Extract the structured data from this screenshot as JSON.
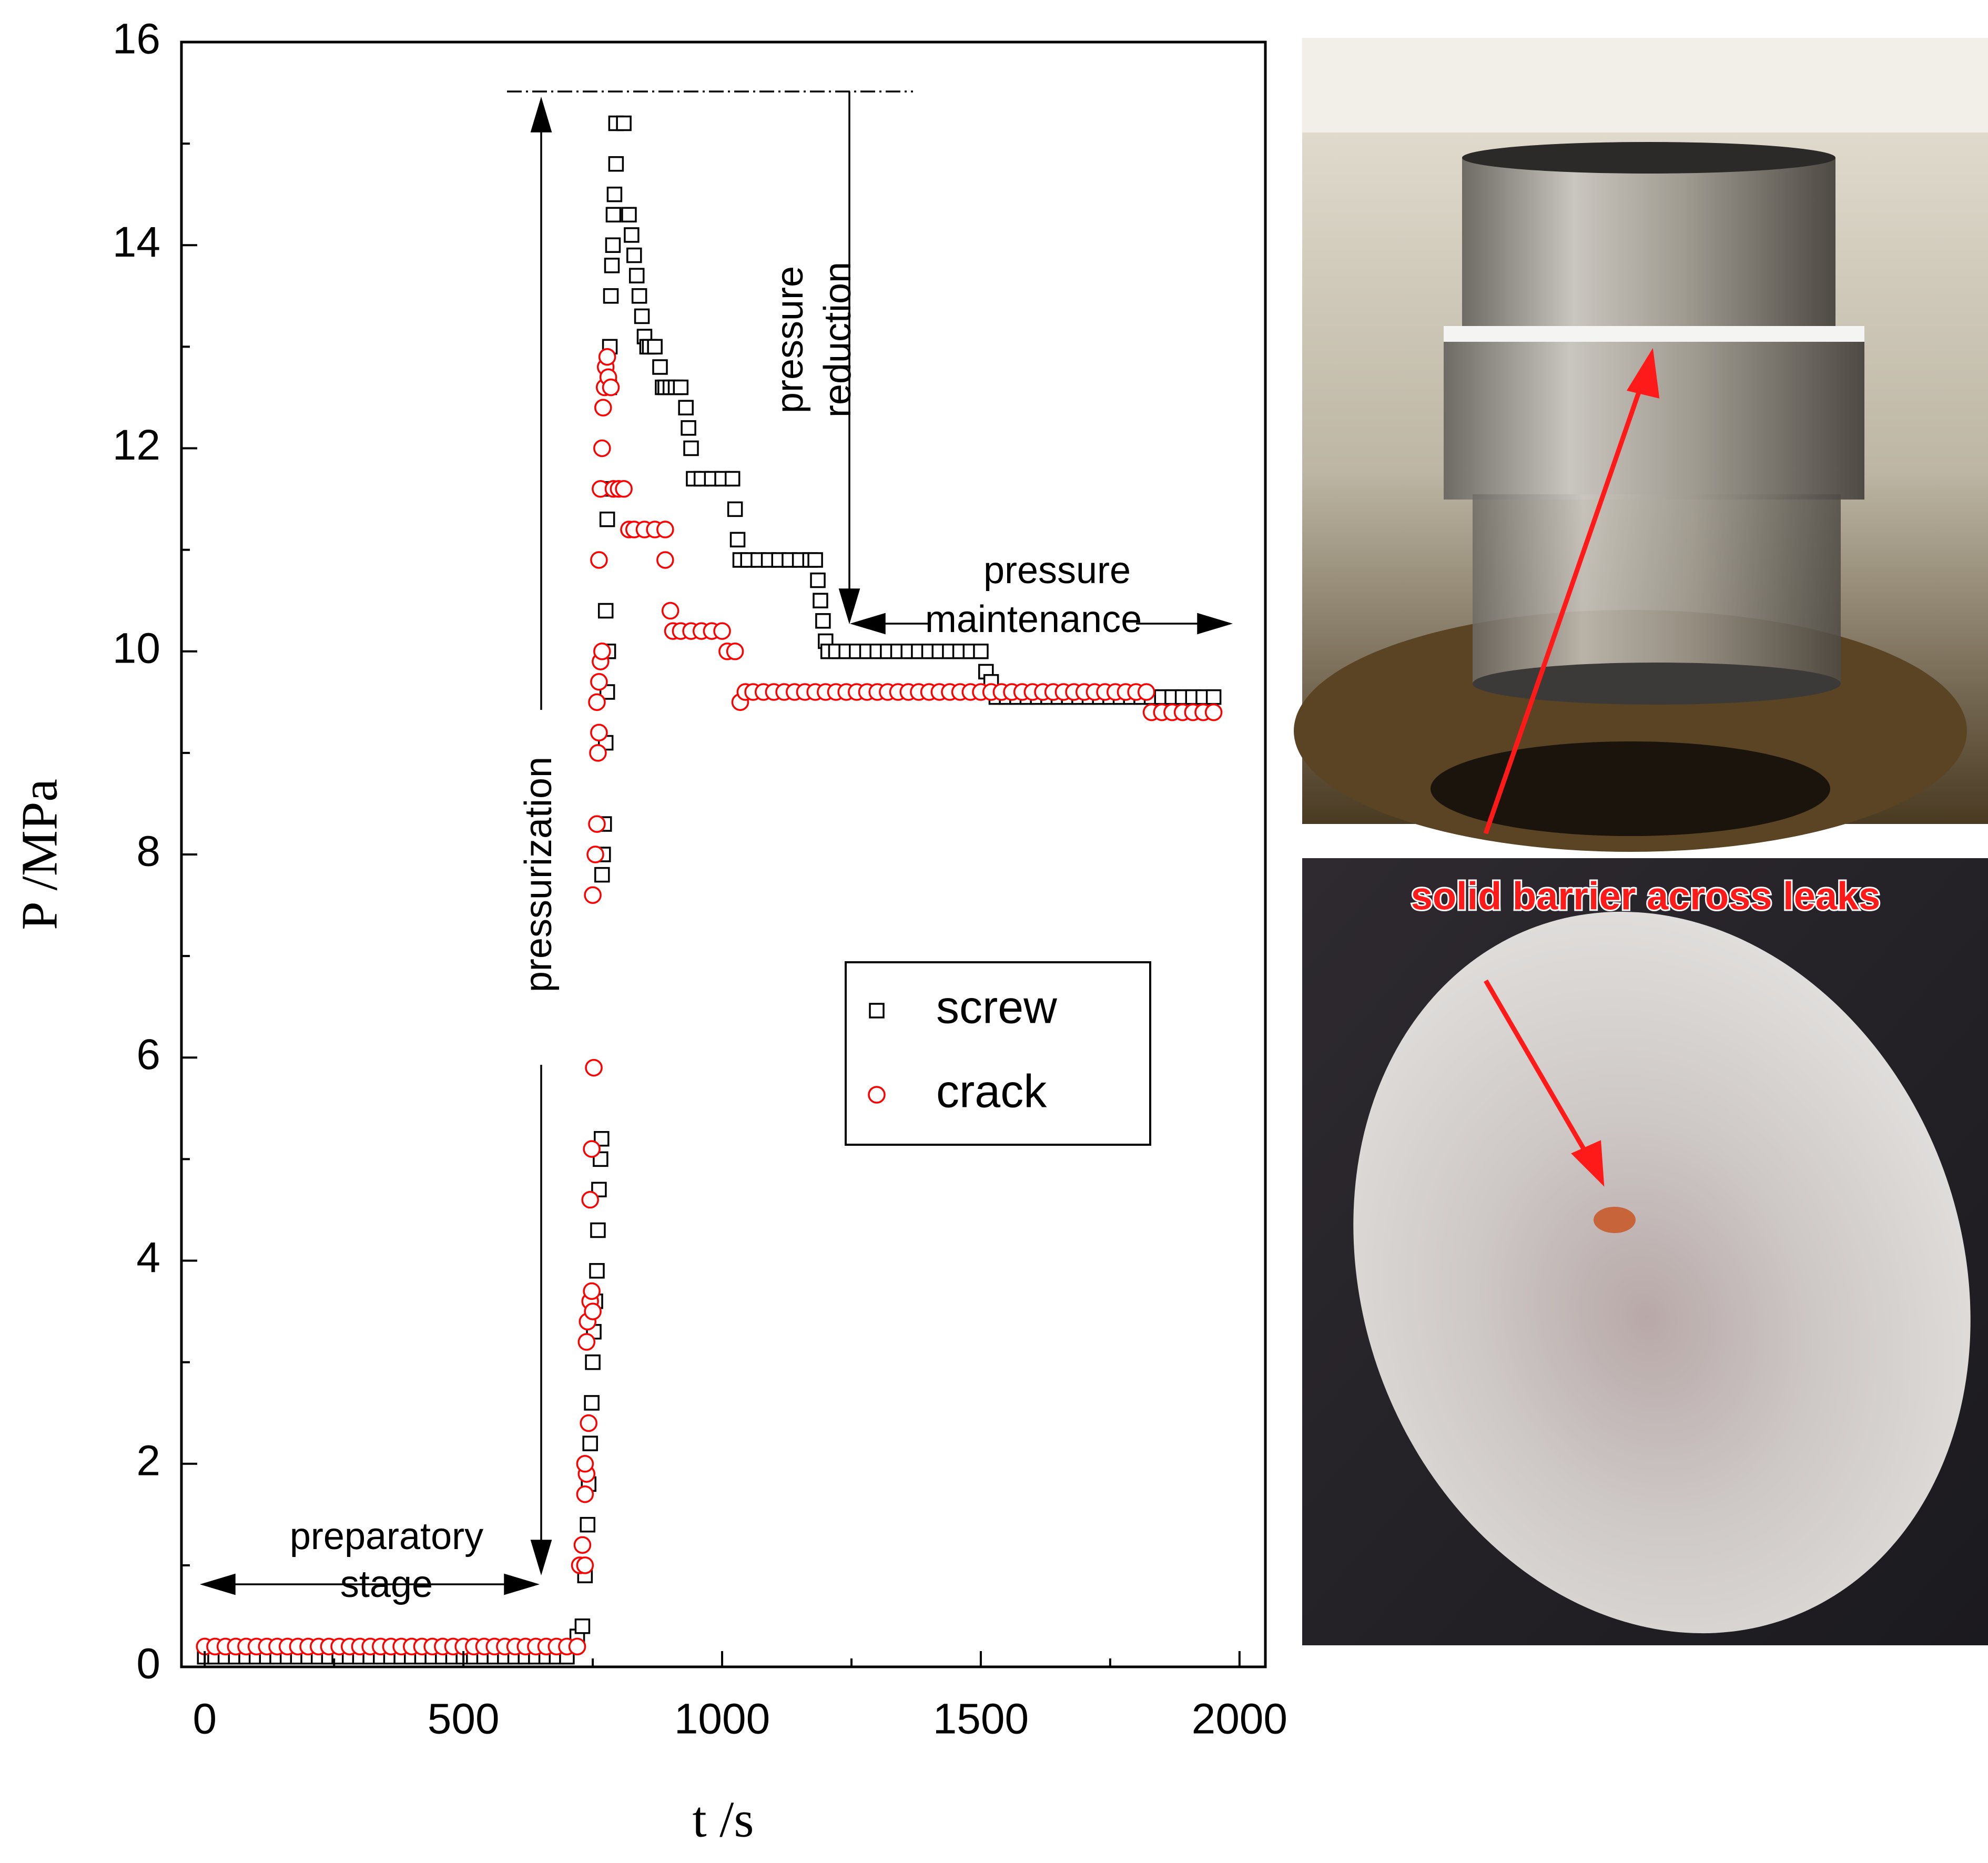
{
  "chart_data": {
    "type": "scatter",
    "xlabel": "t /s",
    "ylabel": "P /MPa",
    "xlim": [
      -45,
      2050
    ],
    "ylim": [
      0,
      16
    ],
    "xticks": [
      0,
      500,
      1000,
      1500,
      2000
    ],
    "yticks": [
      0,
      2,
      4,
      6,
      8,
      10,
      12,
      14,
      16
    ],
    "legend": "center right",
    "annotations": {
      "preparatory": [
        "preparatory",
        "stage"
      ],
      "pressurization": "pressurization",
      "reduction": [
        "pressure",
        "reduction"
      ],
      "maintenance": [
        "pressure",
        "maintenance"
      ],
      "photo": "solid barrier across leaks"
    },
    "series": [
      {
        "name": "screw",
        "color": "#000000",
        "marker": "square",
        "x": [
          0,
          20,
          40,
          60,
          80,
          100,
          120,
          140,
          160,
          180,
          200,
          220,
          240,
          260,
          280,
          300,
          320,
          340,
          360,
          380,
          400,
          420,
          440,
          460,
          480,
          500,
          520,
          540,
          560,
          580,
          600,
          620,
          640,
          660,
          680,
          700,
          720,
          730,
          735,
          740,
          742,
          745,
          748,
          750,
          752,
          755,
          758,
          760,
          762,
          765,
          767,
          768,
          770,
          772,
          775,
          778,
          780,
          775,
          778,
          780,
          782,
          783,
          785,
          787,
          789,
          790,
          792,
          795,
          795,
          810,
          820,
          825,
          830,
          835,
          840,
          845,
          850,
          855,
          860,
          870,
          880,
          885,
          890,
          900,
          910,
          920,
          930,
          935,
          940,
          945,
          960,
          980,
          1000,
          1020,
          1025,
          1030,
          1035,
          1050,
          1070,
          1090,
          1110,
          1130,
          1150,
          1170,
          1180,
          1185,
          1190,
          1195,
          1200,
          1205,
          1220,
          1240,
          1260,
          1280,
          1300,
          1320,
          1340,
          1360,
          1380,
          1400,
          1420,
          1440,
          1460,
          1480,
          1500,
          1510,
          1520,
          1530,
          1550,
          1570,
          1590,
          1610,
          1630,
          1650,
          1670,
          1690,
          1710,
          1730,
          1750,
          1770,
          1790,
          1810,
          1830,
          1850,
          1870,
          1890,
          1910,
          1930,
          1950
        ],
        "values": [
          0.1,
          0.1,
          0.1,
          0.1,
          0.1,
          0.1,
          0.1,
          0.1,
          0.1,
          0.1,
          0.1,
          0.1,
          0.1,
          0.1,
          0.1,
          0.1,
          0.1,
          0.1,
          0.1,
          0.1,
          0.1,
          0.1,
          0.1,
          0.1,
          0.1,
          0.1,
          0.1,
          0.1,
          0.1,
          0.1,
          0.1,
          0.1,
          0.1,
          0.1,
          0.1,
          0.1,
          0.3,
          0.4,
          0.9,
          1.4,
          1.8,
          2.2,
          2.6,
          3.0,
          3.3,
          3.6,
          3.9,
          4.3,
          4.7,
          5.0,
          5.2,
          7.8,
          8.0,
          8.3,
          9.1,
          9.6,
          10.0,
          10.4,
          11.3,
          11.6,
          12.6,
          13.0,
          13.5,
          13.8,
          14.0,
          14.3,
          14.5,
          14.8,
          15.2,
          15.2,
          14.3,
          14.1,
          13.9,
          13.7,
          13.5,
          13.3,
          13.1,
          13.0,
          13.0,
          13.0,
          12.8,
          12.6,
          12.6,
          12.6,
          12.6,
          12.6,
          12.4,
          12.2,
          12.0,
          11.7,
          11.7,
          11.7,
          11.7,
          11.7,
          11.4,
          11.1,
          10.9,
          10.9,
          10.9,
          10.9,
          10.9,
          10.9,
          10.9,
          10.9,
          10.9,
          10.7,
          10.5,
          10.3,
          10.1,
          10.0,
          10.0,
          10.0,
          10.0,
          10.0,
          10.0,
          10.0,
          10.0,
          10.0,
          10.0,
          10.0,
          10.0,
          10.0,
          10.0,
          10.0,
          10.0,
          9.8,
          9.7,
          9.55,
          9.55,
          9.55,
          9.55,
          9.55,
          9.55,
          9.55,
          9.55,
          9.55,
          9.55,
          9.55,
          9.55,
          9.55,
          9.55,
          9.55,
          9.55,
          9.55,
          9.55,
          9.55,
          9.55,
          9.55,
          9.55
        ]
      },
      {
        "name": "crack",
        "color": "#ff0000",
        "marker": "circle",
        "x": [
          0,
          20,
          40,
          60,
          80,
          100,
          120,
          140,
          160,
          180,
          200,
          220,
          240,
          260,
          280,
          300,
          320,
          340,
          360,
          380,
          400,
          420,
          440,
          460,
          480,
          500,
          520,
          540,
          560,
          580,
          600,
          620,
          640,
          660,
          680,
          700,
          720,
          725,
          735,
          730,
          735,
          738,
          735,
          742,
          738,
          740,
          745,
          748,
          750,
          745,
          748,
          752,
          750,
          755,
          758,
          760,
          762,
          758,
          762,
          765,
          768,
          762,
          765,
          768,
          770,
          773,
          775,
          778,
          780,
          785,
          790,
          800,
          810,
          820,
          830,
          850,
          870,
          890,
          890,
          900,
          905,
          920,
          940,
          960,
          980,
          1000,
          1010,
          1025,
          1035,
          1045,
          1060,
          1080,
          1100,
          1120,
          1140,
          1160,
          1180,
          1200,
          1220,
          1240,
          1260,
          1280,
          1300,
          1320,
          1340,
          1360,
          1380,
          1400,
          1420,
          1440,
          1460,
          1480,
          1500,
          1520,
          1540,
          1560,
          1580,
          1600,
          1620,
          1640,
          1660,
          1680,
          1700,
          1720,
          1740,
          1760,
          1780,
          1800,
          1820,
          1830,
          1850,
          1870,
          1890,
          1910,
          1930,
          1950
        ],
        "values": [
          0.2,
          0.2,
          0.2,
          0.2,
          0.2,
          0.2,
          0.2,
          0.2,
          0.2,
          0.2,
          0.2,
          0.2,
          0.2,
          0.2,
          0.2,
          0.2,
          0.2,
          0.2,
          0.2,
          0.2,
          0.2,
          0.2,
          0.2,
          0.2,
          0.2,
          0.2,
          0.2,
          0.2,
          0.2,
          0.2,
          0.2,
          0.2,
          0.2,
          0.2,
          0.2,
          0.2,
          0.2,
          1.0,
          1.0,
          1.2,
          1.7,
          1.9,
          2.0,
          2.4,
          3.2,
          3.4,
          3.6,
          3.7,
          3.5,
          4.6,
          5.1,
          5.9,
          7.6,
          8.0,
          8.3,
          9.0,
          9.2,
          9.5,
          9.7,
          9.9,
          10.0,
          10.9,
          11.6,
          12.0,
          12.4,
          12.6,
          12.8,
          12.9,
          12.7,
          12.6,
          11.6,
          11.6,
          11.6,
          11.2,
          11.2,
          11.2,
          11.2,
          11.2,
          10.9,
          10.4,
          10.2,
          10.2,
          10.2,
          10.2,
          10.2,
          10.2,
          10.0,
          10.0,
          9.5,
          9.6,
          9.6,
          9.6,
          9.6,
          9.6,
          9.6,
          9.6,
          9.6,
          9.6,
          9.6,
          9.6,
          9.6,
          9.6,
          9.6,
          9.6,
          9.6,
          9.6,
          9.6,
          9.6,
          9.6,
          9.6,
          9.6,
          9.6,
          9.6,
          9.6,
          9.6,
          9.6,
          9.6,
          9.6,
          9.6,
          9.6,
          9.6,
          9.6,
          9.6,
          9.6,
          9.6,
          9.6,
          9.6,
          9.6,
          9.6,
          9.4,
          9.4,
          9.4,
          9.4,
          9.4,
          9.4,
          9.4
        ]
      }
    ]
  }
}
